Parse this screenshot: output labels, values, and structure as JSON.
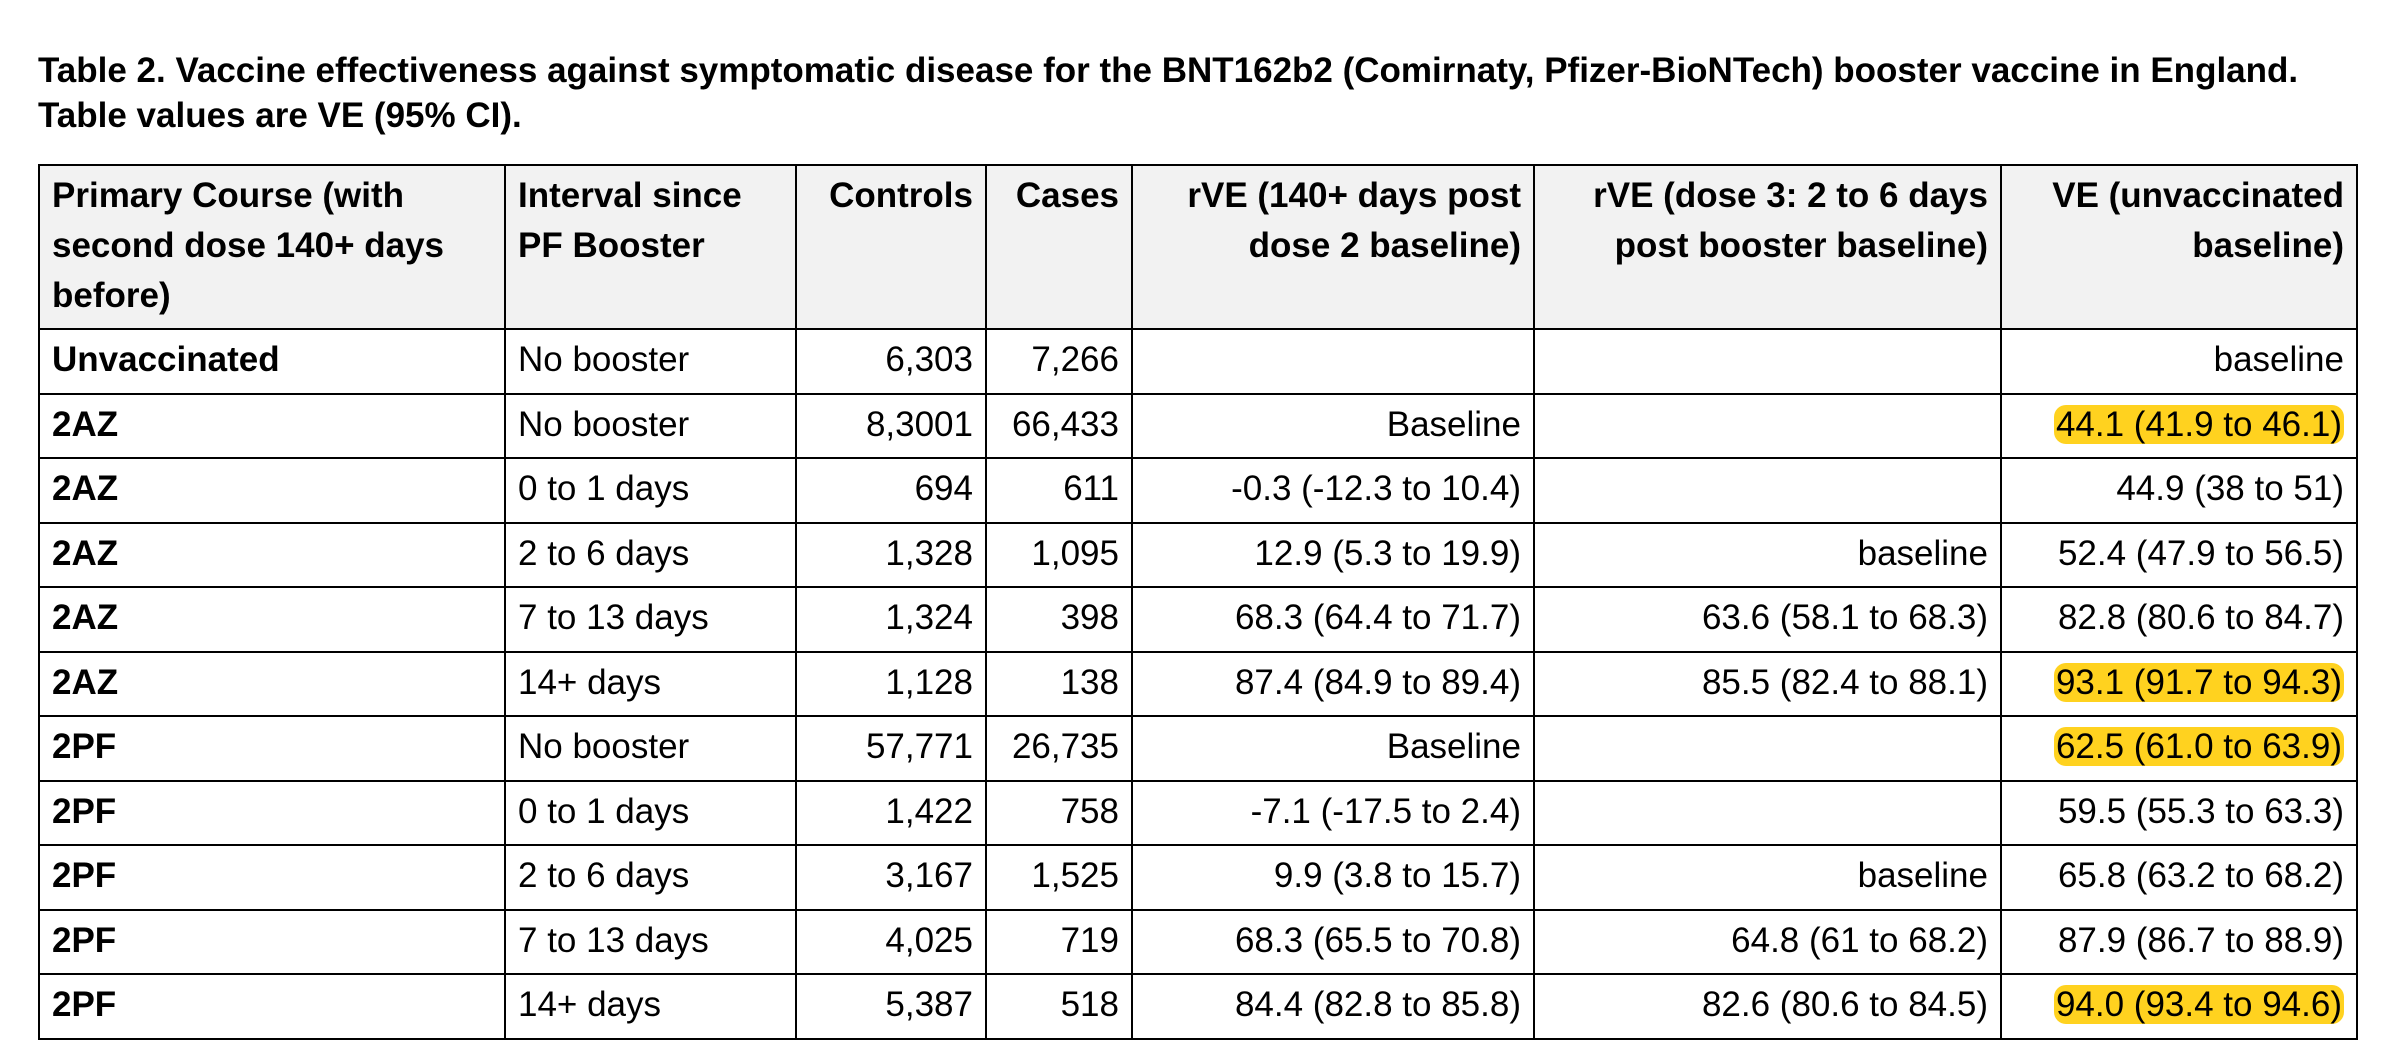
{
  "caption": "Table 2. Vaccine effectiveness against symptomatic disease for the BNT162b2 (Comirnaty, Pfizer-BioNTech) booster vaccine in England. Table values are VE (95% CI).",
  "headers": {
    "course": "Primary Course (with second dose 140+ days before)",
    "interval": "Interval since PF Booster",
    "controls": "Controls",
    "cases": "Cases",
    "rve140": "rVE (140+ days post dose 2 baseline)",
    "rve_dose3": "rVE (dose 3: 2 to 6 days post booster baseline)",
    "ve_unvax": "VE (unvaccinated baseline)"
  },
  "rows": [
    {
      "course": "Unvaccinated",
      "interval": "No booster",
      "controls": "6,303",
      "cases": "7,266",
      "rve140": "",
      "rve_dose3": "",
      "ve": "baseline",
      "ve_highlight": false
    },
    {
      "course": "2AZ",
      "interval": "No booster",
      "controls": "8,3001",
      "cases": "66,433",
      "rve140": "Baseline",
      "rve_dose3": "",
      "ve": "44.1 (41.9 to 46.1)",
      "ve_highlight": true
    },
    {
      "course": "2AZ",
      "interval": "0 to 1 days",
      "controls": "694",
      "cases": "611",
      "rve140": "-0.3 (-12.3 to 10.4)",
      "rve_dose3": "",
      "ve": "44.9 (38 to 51)",
      "ve_highlight": false
    },
    {
      "course": "2AZ",
      "interval": "2 to 6 days",
      "controls": "1,328",
      "cases": "1,095",
      "rve140": "12.9 (5.3 to 19.9)",
      "rve_dose3": "baseline",
      "ve": "52.4 (47.9 to 56.5)",
      "ve_highlight": false
    },
    {
      "course": "2AZ",
      "interval": "7 to 13 days",
      "controls": "1,324",
      "cases": "398",
      "rve140": "68.3 (64.4 to 71.7)",
      "rve_dose3": "63.6 (58.1 to 68.3)",
      "ve": "82.8 (80.6 to 84.7)",
      "ve_highlight": false
    },
    {
      "course": "2AZ",
      "interval": "14+ days",
      "controls": "1,128",
      "cases": "138",
      "rve140": "87.4 (84.9 to 89.4)",
      "rve_dose3": "85.5 (82.4 to 88.1)",
      "ve": "93.1 (91.7 to 94.3)",
      "ve_highlight": true
    },
    {
      "course": "2PF",
      "interval": "No booster",
      "controls": "57,771",
      "cases": "26,735",
      "rve140": "Baseline",
      "rve_dose3": "",
      "ve": "62.5 (61.0 to 63.9)",
      "ve_highlight": true
    },
    {
      "course": "2PF",
      "interval": "0 to 1 days",
      "controls": "1,422",
      "cases": "758",
      "rve140": "-7.1 (-17.5 to 2.4)",
      "rve_dose3": "",
      "ve": "59.5 (55.3 to 63.3)",
      "ve_highlight": false
    },
    {
      "course": "2PF",
      "interval": "2 to 6 days",
      "controls": "3,167",
      "cases": "1,525",
      "rve140": "9.9 (3.8 to 15.7)",
      "rve_dose3": "baseline",
      "ve": "65.8 (63.2 to 68.2)",
      "ve_highlight": false
    },
    {
      "course": "2PF",
      "interval": "7 to 13 days",
      "controls": "4,025",
      "cases": "719",
      "rve140": "68.3 (65.5 to 70.8)",
      "rve_dose3": "64.8 (61 to 68.2)",
      "ve": "87.9 (86.7 to 88.9)",
      "ve_highlight": false
    },
    {
      "course": "2PF",
      "interval": "14+ days",
      "controls": "5,387",
      "cases": "518",
      "rve140": "84.4 (82.8 to 85.8)",
      "rve_dose3": "82.6 (80.6 to 84.5)",
      "ve": "94.0 (93.4 to 94.6)",
      "ve_highlight": true
    }
  ],
  "colors": {
    "highlight": "#ffd21f",
    "header_background": "#f2f2f2",
    "border": "#000000"
  }
}
